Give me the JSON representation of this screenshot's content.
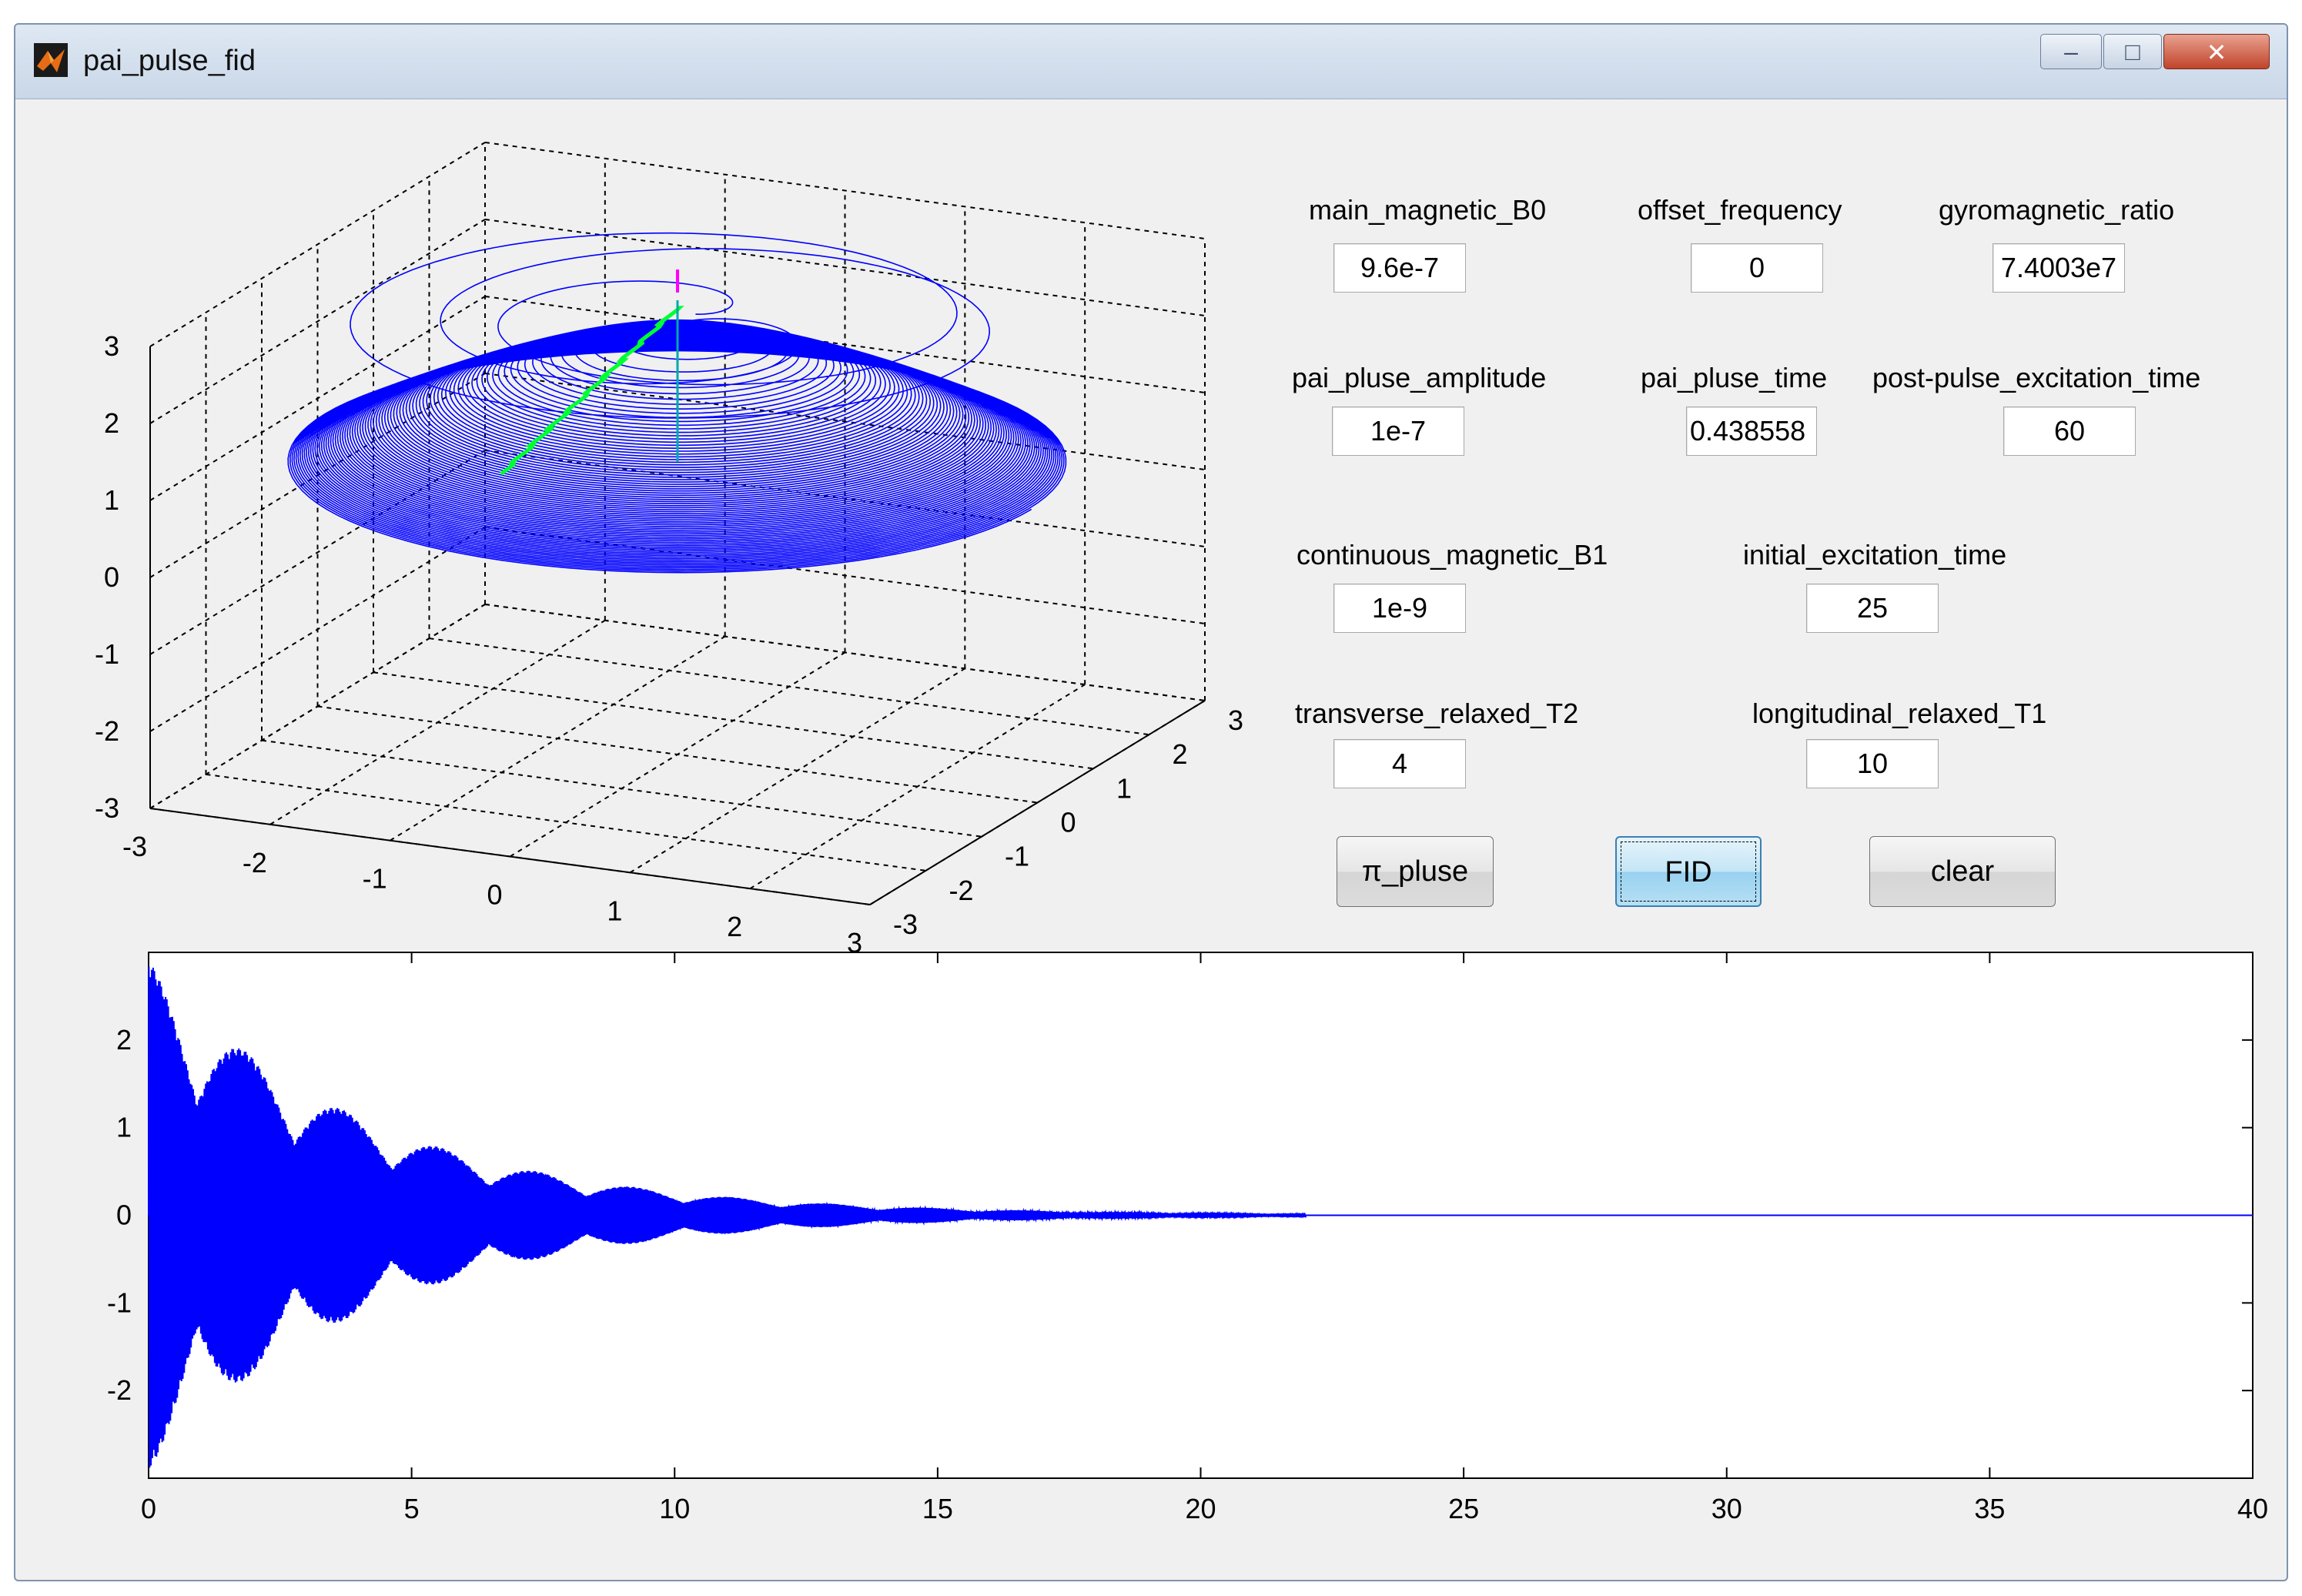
{
  "window": {
    "title": "pai_pulse_fid",
    "minimize": "–",
    "maximize": "□",
    "close": "✕"
  },
  "params": {
    "main_magnetic_B0": {
      "label": "main_magnetic_B0",
      "value": "9.6e-7"
    },
    "offset_frequency": {
      "label": "offset_frequency",
      "value": "0"
    },
    "gyromagnetic_ratio": {
      "label": "gyromagnetic_ratio",
      "value": "7.4003e7"
    },
    "pai_pluse_amplitude": {
      "label": "pai_pluse_amplitude",
      "value": "1e-7"
    },
    "pai_pluse_time": {
      "label": "pai_pluse_time",
      "value": "0.438558"
    },
    "post_pulse_excitation_time": {
      "label": "post-pulse_excitation_time",
      "value": "60"
    },
    "continuous_magnetic_B1": {
      "label": "continuous_magnetic_B1",
      "value": "1e-9"
    },
    "initial_excitation_time": {
      "label": "initial_excitation_time",
      "value": "25"
    },
    "transverse_relaxed_T2": {
      "label": "transverse_relaxed_T2",
      "value": "4"
    },
    "longitudinal_relaxed_T1": {
      "label": "longitudinal_relaxed_T1",
      "value": "10"
    }
  },
  "buttons": {
    "pi_pulse": "π_pluse",
    "fid": "FID",
    "clear": "clear"
  },
  "colors": {
    "trajectory": "#0000ff",
    "pulse_path": "#00ff33",
    "tip_marker": "#ff00ff",
    "axis_line": "#00aaaa"
  },
  "chart_data": [
    {
      "type": "line",
      "kind": "3d-trajectory",
      "title": "",
      "xlabel": "",
      "ylabel": "",
      "zlabel": "",
      "xlim": [
        -3,
        3
      ],
      "ylim": [
        -3,
        3
      ],
      "zlim": [
        -3,
        3
      ],
      "xticks": [
        "-3",
        "-2",
        "-1",
        "0",
        "1",
        "2",
        "3"
      ],
      "yticks": [
        "-3",
        "-2",
        "-1",
        "0",
        "1",
        "2",
        "3"
      ],
      "zticks": [
        "-3",
        "-2",
        "-1",
        "0",
        "1",
        "2",
        "3"
      ],
      "grid": true,
      "series": [
        {
          "color": "#0000ff",
          "description": "precessing magnetization spiral, radius up to about 3 near z 0 to 1, narrowing to a tip near z 3"
        },
        {
          "color": "#00ff33",
          "description": "pulse path from tip down toward z 1"
        }
      ]
    },
    {
      "type": "line",
      "kind": "fid-signal",
      "title": "",
      "xlabel": "",
      "ylabel": "",
      "xlim": [
        0,
        40
      ],
      "ylim": [
        -3,
        3
      ],
      "xticks": [
        "0",
        "5",
        "10",
        "15",
        "20",
        "25",
        "30",
        "35",
        "40"
      ],
      "yticks": [
        "-2",
        "-1",
        "0",
        "1",
        "2"
      ],
      "grid": false,
      "series": [
        {
          "color": "#0000ff",
          "envelope": "decaying oscillation, amplitude about 2.9 at t 0, about 0.6 at t 10, about 0.05 at t 20, flat 0 after about 22"
        }
      ]
    }
  ]
}
